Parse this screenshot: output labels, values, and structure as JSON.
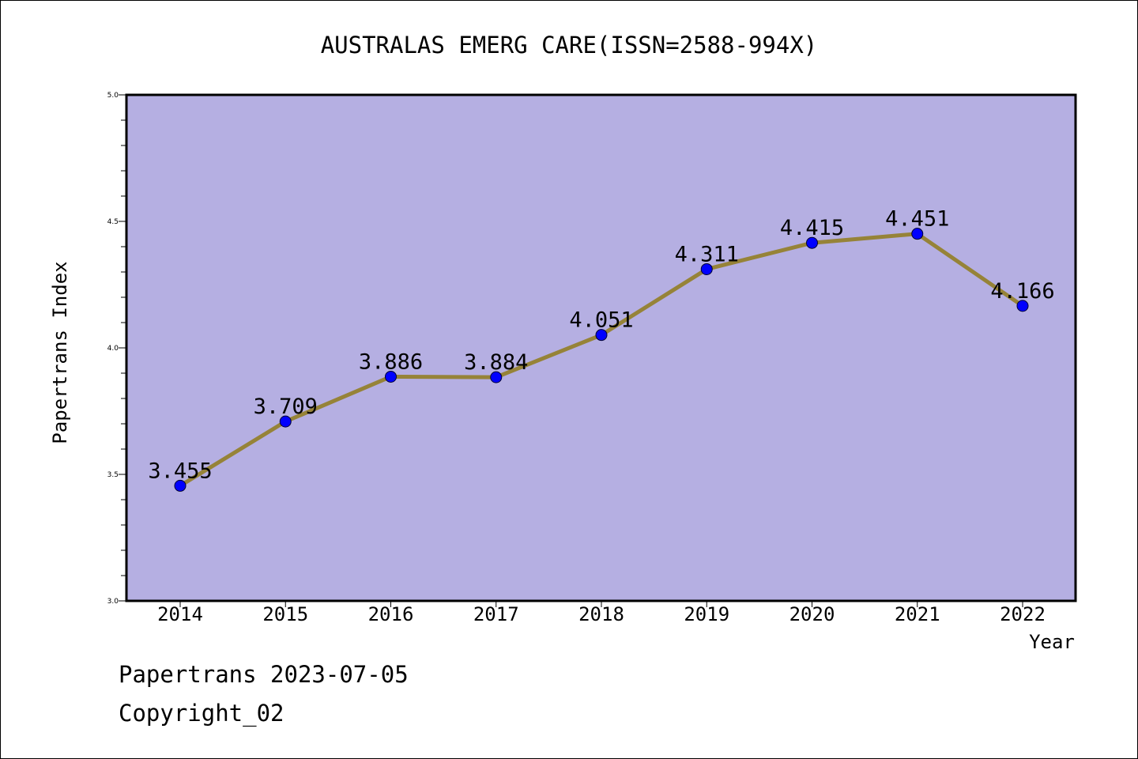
{
  "chart_data": {
    "type": "line",
    "title": "AUSTRALAS EMERG CARE(ISSN=2588-994X)",
    "xlabel": "Year",
    "ylabel": "Papertrans Index",
    "categories": [
      "2014",
      "2015",
      "2016",
      "2017",
      "2018",
      "2019",
      "2020",
      "2021",
      "2022"
    ],
    "series": [
      {
        "values": [
          3.455,
          3.709,
          3.886,
          3.884,
          4.051,
          4.311,
          4.415,
          4.451,
          4.166
        ],
        "labels": [
          "3.455",
          "3.709",
          "3.886",
          "3.884",
          "4.051",
          "4.311",
          "4.415",
          "4.451",
          "4.166"
        ]
      }
    ],
    "ylim": [
      3.0,
      5.0
    ],
    "yticks": [
      "3.0",
      "3.5",
      "4.0",
      "4.5",
      "5.0"
    ],
    "grid": false,
    "colors": {
      "plot_background": "#b5afe2",
      "line": "#968338",
      "marker": "#0000ff",
      "axis": "#000000"
    }
  },
  "footer": {
    "line1": "Papertrans 2023-07-05",
    "line2": "Copyright_02"
  }
}
